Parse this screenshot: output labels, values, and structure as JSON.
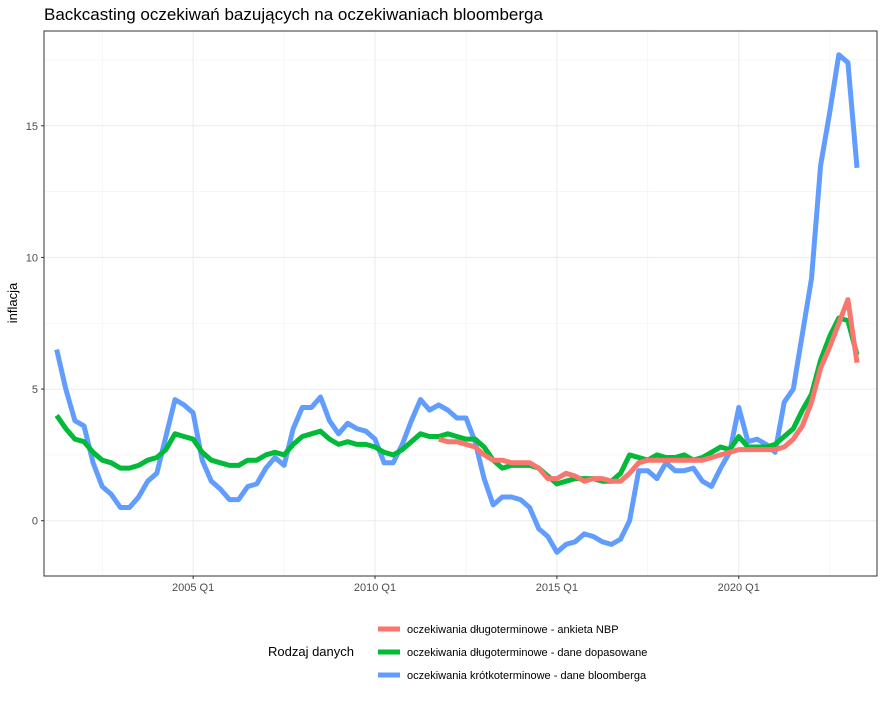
{
  "chart_data": {
    "type": "line",
    "title": "Backcasting oczekiwań bazujących na oczekiwaniach bloomberga",
    "xlabel": "",
    "ylabel": "inflacja",
    "x_ticks": [
      "2005 Q1",
      "2010 Q1",
      "2015 Q1",
      "2020 Q1"
    ],
    "y_ticks": [
      0,
      5,
      10,
      15
    ],
    "xlim": [
      2000.9,
      2023.8
    ],
    "ylim": [
      -2.1,
      18.6
    ],
    "grid": true,
    "legend_title": "Rodzaj danych",
    "legend_position": "bottom",
    "series": [
      {
        "name": "oczekiwania długoterminowe - ankieta NBP",
        "color": "#f8766d",
        "x": [
          2011.75,
          2012.0,
          2012.25,
          2012.5,
          2012.75,
          2013.0,
          2013.25,
          2013.5,
          2013.75,
          2014.0,
          2014.25,
          2014.5,
          2014.75,
          2015.0,
          2015.25,
          2015.5,
          2015.75,
          2016.0,
          2016.25,
          2016.5,
          2016.75,
          2017.0,
          2017.25,
          2017.5,
          2017.75,
          2018.0,
          2018.25,
          2018.5,
          2018.75,
          2019.0,
          2019.25,
          2019.5,
          2019.75,
          2020.0,
          2020.25,
          2020.5,
          2020.75,
          2021.0,
          2021.25,
          2021.5,
          2021.75,
          2022.0,
          2022.25,
          2022.5,
          2022.75,
          2023.0,
          2023.25
        ],
        "values": [
          3.1,
          3.0,
          3.0,
          2.9,
          2.8,
          2.5,
          2.3,
          2.3,
          2.2,
          2.2,
          2.2,
          2.0,
          1.6,
          1.6,
          1.8,
          1.7,
          1.5,
          1.6,
          1.6,
          1.5,
          1.5,
          1.8,
          2.2,
          2.3,
          2.3,
          2.3,
          2.3,
          2.3,
          2.3,
          2.3,
          2.4,
          2.5,
          2.6,
          2.7,
          2.7,
          2.7,
          2.7,
          2.7,
          2.8,
          3.1,
          3.6,
          4.5,
          5.8,
          6.6,
          7.5,
          8.4,
          6.0
        ]
      },
      {
        "name": "oczekiwania długoterminowe - dane dopasowane",
        "color": "#00ba38",
        "x": [
          2001.25,
          2001.5,
          2001.75,
          2002.0,
          2002.25,
          2002.5,
          2002.75,
          2003.0,
          2003.25,
          2003.5,
          2003.75,
          2004.0,
          2004.25,
          2004.5,
          2004.75,
          2005.0,
          2005.25,
          2005.5,
          2005.75,
          2006.0,
          2006.25,
          2006.5,
          2006.75,
          2007.0,
          2007.25,
          2007.5,
          2007.75,
          2008.0,
          2008.25,
          2008.5,
          2008.75,
          2009.0,
          2009.25,
          2009.5,
          2009.75,
          2010.0,
          2010.25,
          2010.5,
          2010.75,
          2011.0,
          2011.25,
          2011.5,
          2011.75,
          2012.0,
          2012.25,
          2012.5,
          2012.75,
          2013.0,
          2013.25,
          2013.5,
          2013.75,
          2014.0,
          2014.25,
          2014.5,
          2014.75,
          2015.0,
          2015.25,
          2015.5,
          2015.75,
          2016.0,
          2016.25,
          2016.5,
          2016.75,
          2017.0,
          2017.25,
          2017.5,
          2017.75,
          2018.0,
          2018.25,
          2018.5,
          2018.75,
          2019.0,
          2019.25,
          2019.5,
          2019.75,
          2020.0,
          2020.25,
          2020.5,
          2020.75,
          2021.0,
          2021.25,
          2021.5,
          2021.75,
          2022.0,
          2022.25,
          2022.5,
          2022.75,
          2023.0,
          2023.25
        ],
        "values": [
          4.0,
          3.5,
          3.1,
          3.0,
          2.6,
          2.3,
          2.2,
          2.0,
          2.0,
          2.1,
          2.3,
          2.4,
          2.7,
          3.3,
          3.2,
          3.1,
          2.6,
          2.3,
          2.2,
          2.1,
          2.1,
          2.3,
          2.3,
          2.5,
          2.6,
          2.5,
          2.9,
          3.2,
          3.3,
          3.4,
          3.1,
          2.9,
          3.0,
          2.9,
          2.9,
          2.8,
          2.6,
          2.5,
          2.7,
          3.0,
          3.3,
          3.2,
          3.2,
          3.3,
          3.2,
          3.1,
          3.1,
          2.8,
          2.3,
          2.0,
          2.1,
          2.1,
          2.1,
          2.0,
          1.7,
          1.4,
          1.5,
          1.6,
          1.6,
          1.6,
          1.5,
          1.5,
          1.8,
          2.5,
          2.4,
          2.3,
          2.5,
          2.4,
          2.4,
          2.5,
          2.3,
          2.4,
          2.6,
          2.8,
          2.7,
          3.2,
          2.8,
          2.8,
          2.8,
          2.9,
          3.2,
          3.5,
          4.2,
          4.8,
          6.1,
          7.0,
          7.7,
          7.6,
          6.3
        ]
      },
      {
        "name": "oczekiwania krótkoterminowe - dane bloomberga",
        "color": "#619cff",
        "x": [
          2001.25,
          2001.5,
          2001.75,
          2002.0,
          2002.25,
          2002.5,
          2002.75,
          2003.0,
          2003.25,
          2003.5,
          2003.75,
          2004.0,
          2004.25,
          2004.5,
          2004.75,
          2005.0,
          2005.25,
          2005.5,
          2005.75,
          2006.0,
          2006.25,
          2006.5,
          2006.75,
          2007.0,
          2007.25,
          2007.5,
          2007.75,
          2008.0,
          2008.25,
          2008.5,
          2008.75,
          2009.0,
          2009.25,
          2009.5,
          2009.75,
          2010.0,
          2010.25,
          2010.5,
          2010.75,
          2011.0,
          2011.25,
          2011.5,
          2011.75,
          2012.0,
          2012.25,
          2012.5,
          2012.75,
          2013.0,
          2013.25,
          2013.5,
          2013.75,
          2014.0,
          2014.25,
          2014.5,
          2014.75,
          2015.0,
          2015.25,
          2015.5,
          2015.75,
          2016.0,
          2016.25,
          2016.5,
          2016.75,
          2017.0,
          2017.25,
          2017.5,
          2017.75,
          2018.0,
          2018.25,
          2018.5,
          2018.75,
          2019.0,
          2019.25,
          2019.5,
          2019.75,
          2020.0,
          2020.25,
          2020.5,
          2020.75,
          2021.0,
          2021.25,
          2021.5,
          2021.75,
          2022.0,
          2022.25,
          2022.5,
          2022.75,
          2023.0,
          2023.25
        ],
        "values": [
          6.5,
          5.0,
          3.8,
          3.6,
          2.2,
          1.3,
          1.0,
          0.5,
          0.5,
          0.9,
          1.5,
          1.8,
          3.2,
          4.6,
          4.4,
          4.1,
          2.3,
          1.5,
          1.2,
          0.8,
          0.8,
          1.3,
          1.4,
          2.0,
          2.4,
          2.1,
          3.5,
          4.3,
          4.3,
          4.7,
          3.8,
          3.3,
          3.7,
          3.5,
          3.4,
          3.1,
          2.2,
          2.2,
          2.9,
          3.8,
          4.6,
          4.2,
          4.4,
          4.2,
          3.9,
          3.9,
          3.0,
          1.6,
          0.6,
          0.9,
          0.9,
          0.8,
          0.5,
          -0.3,
          -0.6,
          -1.2,
          -0.9,
          -0.8,
          -0.5,
          -0.6,
          -0.8,
          -0.9,
          -0.7,
          0.0,
          1.9,
          1.9,
          1.6,
          2.2,
          1.9,
          1.9,
          2.0,
          1.5,
          1.3,
          2.0,
          2.6,
          4.3,
          3.0,
          3.1,
          2.9,
          2.6,
          4.5,
          5.0,
          7.1,
          9.2,
          13.5,
          15.5,
          17.7,
          17.4,
          13.4
        ]
      }
    ]
  }
}
